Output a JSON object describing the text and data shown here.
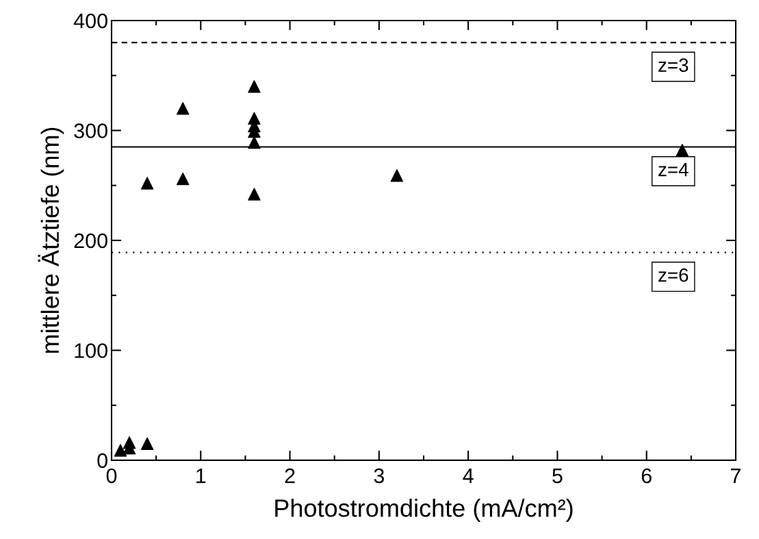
{
  "chart_data": {
    "type": "scatter",
    "xlabel": "Photostromdichte (mA/cm²)",
    "ylabel": "mittlere Ätztiefe (nm)",
    "x": [
      0.1,
      0.2,
      0.2,
      0.4,
      0.4,
      0.8,
      0.8,
      1.6,
      1.6,
      1.6,
      1.6,
      1.6,
      1.6,
      3.2,
      6.4
    ],
    "series": [
      {
        "color": "#000000",
        "values": [
          9,
          11,
          16,
          15,
          252,
          256,
          320,
          340,
          311,
          304,
          299,
          289,
          242,
          259,
          282
        ]
      }
    ],
    "marker": "triangle",
    "xlim": [
      0,
      7
    ],
    "ylim": [
      0,
      400
    ],
    "xticks": [
      0,
      1,
      2,
      3,
      4,
      5,
      6,
      7
    ],
    "yticks": [
      0,
      100,
      200,
      300,
      400
    ],
    "ref_lines": [
      {
        "axis": "y",
        "value": 380,
        "color": "#000000",
        "line_style": "dashed"
      },
      {
        "axis": "y",
        "value": 285,
        "color": "#000000",
        "line_style": "solid"
      },
      {
        "axis": "y",
        "value": 189,
        "color": "#000000",
        "line_style": "dotted"
      }
    ],
    "annotations": [
      {
        "text": "z=3",
        "y": 380
      },
      {
        "text": "z=4",
        "y": 285
      },
      {
        "text": "z=6",
        "y": 189
      }
    ],
    "grid": false,
    "legend": false
  }
}
